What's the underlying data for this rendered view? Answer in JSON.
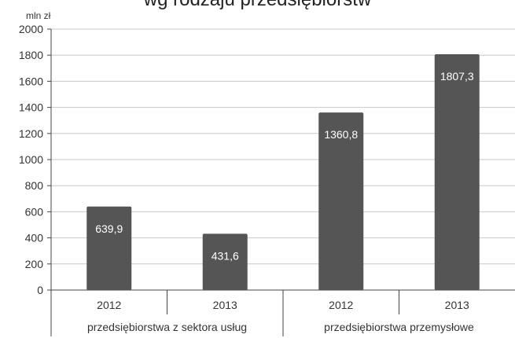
{
  "chart_data": {
    "type": "bar",
    "title": "wg rodzaju przedsiębiorstw",
    "ylabel": "mln zł",
    "ylim": [
      0,
      2000
    ],
    "yticks": [
      0,
      200,
      400,
      600,
      800,
      1000,
      1200,
      1400,
      1600,
      1800,
      2000
    ],
    "grid": true,
    "groups": [
      {
        "label": "przedsiębiorstwa z sektora usług",
        "categories": [
          "2012",
          "2013"
        ]
      },
      {
        "label": "przedsiębiorstwa przemysłowe",
        "categories": [
          "2012",
          "2013"
        ]
      }
    ],
    "categories": [
      "2012",
      "2013",
      "2012",
      "2013"
    ],
    "values": [
      639.9,
      431.6,
      1360.8,
      1807.3
    ],
    "data_labels": [
      "639,9",
      "431,6",
      "1360,8",
      "1807,3"
    ],
    "colors": {
      "bar": "#555555",
      "grid": "#c8c8c8",
      "axis": "#444444",
      "label_text": "#ffffff"
    }
  }
}
